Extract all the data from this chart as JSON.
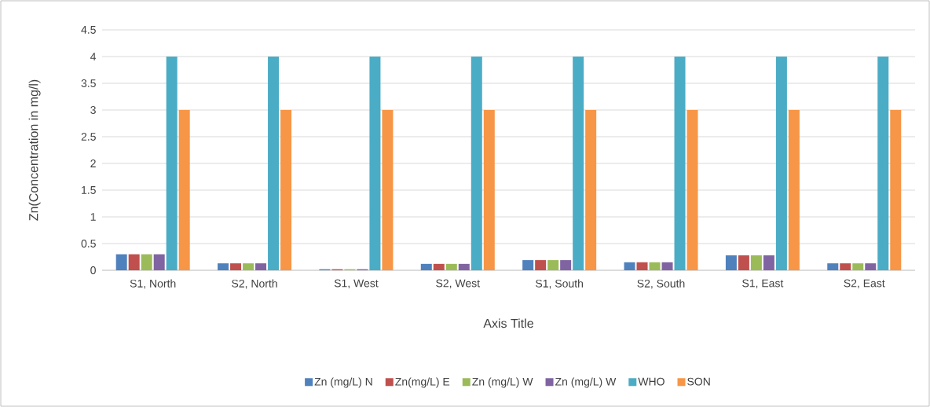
{
  "chart_data": {
    "type": "bar",
    "categories": [
      "S1, North",
      "S2, North",
      "S1, West",
      "S2, West",
      "S1, South",
      "S2, South",
      "S1, East",
      "S2, East"
    ],
    "series": [
      {
        "name": "Zn (mg/L) N",
        "color": "#4f81bd",
        "values": [
          0.3,
          0.13,
          0.02,
          0.12,
          0.19,
          0.15,
          0.28,
          0.13
        ]
      },
      {
        "name": "Zn(mg/L) E",
        "color": "#c0504d",
        "values": [
          0.3,
          0.13,
          0.02,
          0.12,
          0.19,
          0.15,
          0.28,
          0.13
        ]
      },
      {
        "name": "Zn (mg/L) W",
        "color": "#9bbb59",
        "values": [
          0.3,
          0.13,
          0.02,
          0.12,
          0.19,
          0.15,
          0.28,
          0.13
        ]
      },
      {
        "name": "Zn (mg/L) W",
        "color": "#8064a2",
        "values": [
          0.3,
          0.13,
          0.02,
          0.12,
          0.19,
          0.15,
          0.28,
          0.13
        ]
      },
      {
        "name": "WHO",
        "color": "#4bacc6",
        "values": [
          4,
          4,
          4,
          4,
          4,
          4,
          4,
          4
        ]
      },
      {
        "name": "SON",
        "color": "#f79646",
        "values": [
          3,
          3,
          3,
          3,
          3,
          3,
          3,
          3
        ]
      }
    ],
    "xlabel": "Axis Title",
    "ylabel": "Zn(Concentration in mg/l)",
    "ylim": [
      0,
      4.5
    ],
    "yticks": [
      0,
      0.5,
      1,
      1.5,
      2,
      2.5,
      3,
      3.5,
      4,
      4.5
    ],
    "grid": "y",
    "legend": "bottom"
  }
}
